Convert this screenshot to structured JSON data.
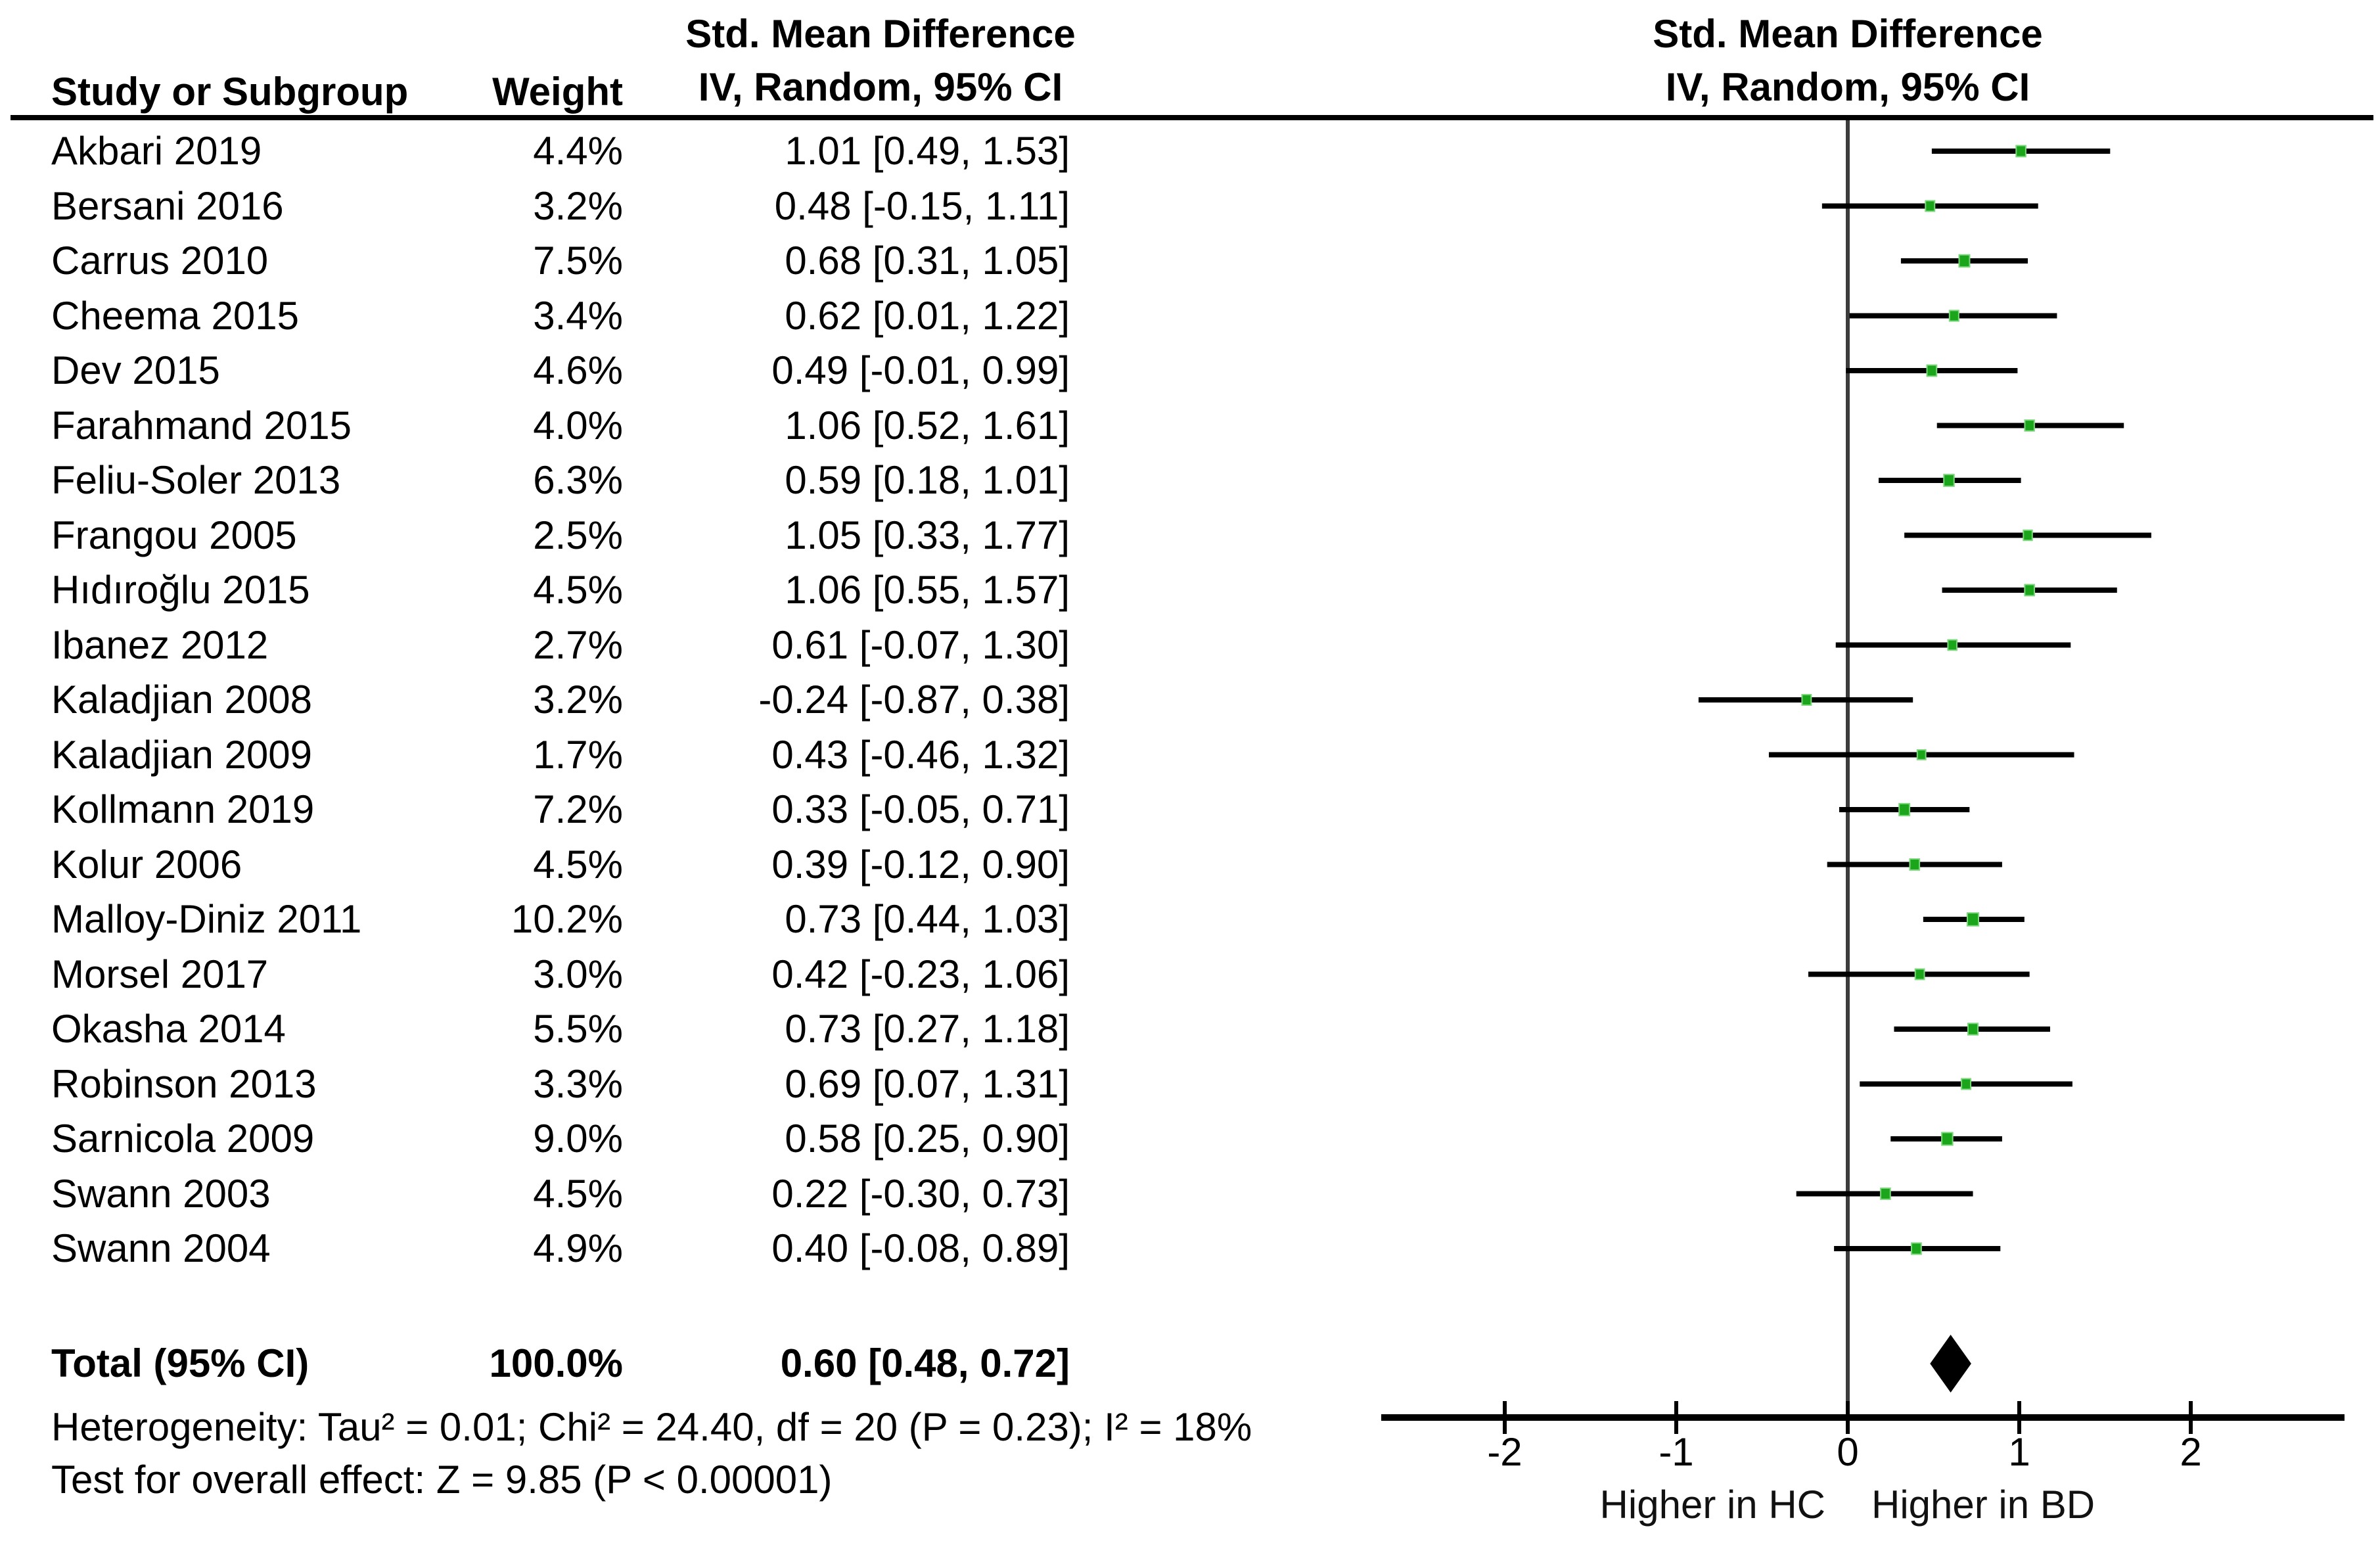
{
  "table": {
    "col_headers": {
      "study": "Study or Subgroup",
      "weight": "Weight",
      "effect_line1": "Std. Mean Difference",
      "effect_line2": "IV, Random, 95% CI"
    },
    "plot_headers": {
      "line1": "Std. Mean Difference",
      "line2": "IV, Random, 95% CI"
    }
  },
  "total_row": {
    "label": "Total (95% CI)",
    "weight_label": "100.0%",
    "ci_label": "0.60 [0.48, 0.72]"
  },
  "footnotes": {
    "heterogeneity": "Heterogeneity: Tau² = 0.01; Chi² = 24.40, df = 20 (P = 0.23); I² = 18%",
    "overall_effect": "Test for overall effect: Z = 9.85 (P < 0.00001)"
  },
  "axis_direction_labels": {
    "left": "Higher in HC",
    "right": "Higher in BD"
  },
  "colors": {
    "marker_green": "#1aa51a",
    "marker_green_edge": "#7dd87d",
    "ci_line": "#000000",
    "zero_line": "#3c3c3c",
    "axis": "#000000",
    "diamond": "#000000"
  },
  "chart_data": {
    "type": "forest",
    "effect_measure": "Std. Mean Difference (IV, Random, 95% CI)",
    "x_ticks": [
      -2,
      -1,
      0,
      1,
      2
    ],
    "x_range": [
      -2.72,
      2.9
    ],
    "studies": [
      {
        "name": "Akbari 2019",
        "weight_pct": 4.4,
        "weight_label": "4.4%",
        "est": 1.01,
        "lo": 0.49,
        "hi": 1.53,
        "ci_label": "1.01 [0.49, 1.53]"
      },
      {
        "name": "Bersani 2016",
        "weight_pct": 3.2,
        "weight_label": "3.2%",
        "est": 0.48,
        "lo": -0.15,
        "hi": 1.11,
        "ci_label": "0.48 [-0.15, 1.11]"
      },
      {
        "name": "Carrus 2010",
        "weight_pct": 7.5,
        "weight_label": "7.5%",
        "est": 0.68,
        "lo": 0.31,
        "hi": 1.05,
        "ci_label": "0.68 [0.31, 1.05]"
      },
      {
        "name": "Cheema 2015",
        "weight_pct": 3.4,
        "weight_label": "3.4%",
        "est": 0.62,
        "lo": 0.01,
        "hi": 1.22,
        "ci_label": "0.62 [0.01, 1.22]"
      },
      {
        "name": "Dev 2015",
        "weight_pct": 4.6,
        "weight_label": "4.6%",
        "est": 0.49,
        "lo": -0.01,
        "hi": 0.99,
        "ci_label": "0.49 [-0.01, 0.99]"
      },
      {
        "name": "Farahmand 2015",
        "weight_pct": 4.0,
        "weight_label": "4.0%",
        "est": 1.06,
        "lo": 0.52,
        "hi": 1.61,
        "ci_label": "1.06 [0.52, 1.61]"
      },
      {
        "name": "Feliu-Soler 2013",
        "weight_pct": 6.3,
        "weight_label": "6.3%",
        "est": 0.59,
        "lo": 0.18,
        "hi": 1.01,
        "ci_label": "0.59 [0.18, 1.01]"
      },
      {
        "name": "Frangou 2005",
        "weight_pct": 2.5,
        "weight_label": "2.5%",
        "est": 1.05,
        "lo": 0.33,
        "hi": 1.77,
        "ci_label": "1.05 [0.33, 1.77]"
      },
      {
        "name": "Hıdıroğlu 2015",
        "weight_pct": 4.5,
        "weight_label": "4.5%",
        "est": 1.06,
        "lo": 0.55,
        "hi": 1.57,
        "ci_label": "1.06 [0.55, 1.57]"
      },
      {
        "name": "Ibanez 2012",
        "weight_pct": 2.7,
        "weight_label": "2.7%",
        "est": 0.61,
        "lo": -0.07,
        "hi": 1.3,
        "ci_label": "0.61 [-0.07, 1.30]"
      },
      {
        "name": "Kaladjian 2008",
        "weight_pct": 3.2,
        "weight_label": "3.2%",
        "est": -0.24,
        "lo": -0.87,
        "hi": 0.38,
        "ci_label": "-0.24 [-0.87, 0.38]"
      },
      {
        "name": "Kaladjian 2009",
        "weight_pct": 1.7,
        "weight_label": "1.7%",
        "est": 0.43,
        "lo": -0.46,
        "hi": 1.32,
        "ci_label": "0.43 [-0.46, 1.32]"
      },
      {
        "name": "Kollmann 2019",
        "weight_pct": 7.2,
        "weight_label": "7.2%",
        "est": 0.33,
        "lo": -0.05,
        "hi": 0.71,
        "ci_label": "0.33 [-0.05, 0.71]"
      },
      {
        "name": "Kolur 2006",
        "weight_pct": 4.5,
        "weight_label": "4.5%",
        "est": 0.39,
        "lo": -0.12,
        "hi": 0.9,
        "ci_label": "0.39 [-0.12, 0.90]"
      },
      {
        "name": "Malloy-Diniz 2011",
        "weight_pct": 10.2,
        "weight_label": "10.2%",
        "est": 0.73,
        "lo": 0.44,
        "hi": 1.03,
        "ci_label": "0.73 [0.44, 1.03]"
      },
      {
        "name": "Morsel 2017",
        "weight_pct": 3.0,
        "weight_label": "3.0%",
        "est": 0.42,
        "lo": -0.23,
        "hi": 1.06,
        "ci_label": "0.42 [-0.23, 1.06]"
      },
      {
        "name": "Okasha 2014",
        "weight_pct": 5.5,
        "weight_label": "5.5%",
        "est": 0.73,
        "lo": 0.27,
        "hi": 1.18,
        "ci_label": "0.73 [0.27, 1.18]"
      },
      {
        "name": "Robinson 2013",
        "weight_pct": 3.3,
        "weight_label": "3.3%",
        "est": 0.69,
        "lo": 0.07,
        "hi": 1.31,
        "ci_label": "0.69 [0.07, 1.31]"
      },
      {
        "name": "Sarnicola 2009",
        "weight_pct": 9.0,
        "weight_label": "9.0%",
        "est": 0.58,
        "lo": 0.25,
        "hi": 0.9,
        "ci_label": "0.58 [0.25, 0.90]"
      },
      {
        "name": "Swann 2003",
        "weight_pct": 4.5,
        "weight_label": "4.5%",
        "est": 0.22,
        "lo": -0.3,
        "hi": 0.73,
        "ci_label": "0.22 [-0.30, 0.73]"
      },
      {
        "name": "Swann 2004",
        "weight_pct": 4.9,
        "weight_label": "4.9%",
        "est": 0.4,
        "lo": -0.08,
        "hi": 0.89,
        "ci_label": "0.40 [-0.08, 0.89]"
      }
    ],
    "total": {
      "est": 0.6,
      "lo": 0.48,
      "hi": 0.72,
      "weight_pct": 100.0
    }
  }
}
